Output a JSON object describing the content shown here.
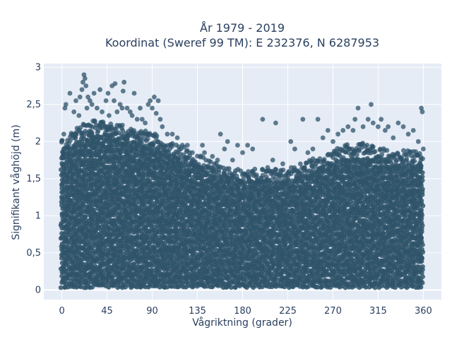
{
  "chart_data": {
    "type": "scatter",
    "title_line1": "År 1979 - 2019",
    "title_line2": "Koordinat (Sweref 99 TM): E 232376, N 6287953",
    "xlabel": "Vågriktning (grader)",
    "ylabel": "Signifikant våghöjd (m)",
    "xlim": [
      -18,
      378
    ],
    "ylim": [
      -0.13,
      3.05
    ],
    "xticks": [
      0,
      45,
      90,
      135,
      180,
      225,
      270,
      315,
      360
    ],
    "xtick_labels": [
      "0",
      "45",
      "90",
      "135",
      "180",
      "225",
      "270",
      "315",
      "360"
    ],
    "yticks": [
      0,
      0.5,
      1,
      1.5,
      2,
      2.5,
      3
    ],
    "ytick_labels": [
      "0",
      "0,5",
      "1",
      "1,5",
      "2",
      "2,5",
      "3"
    ],
    "grid": true,
    "legend": false,
    "colors": {
      "marker": "#2f5369",
      "plot_background": "#e5ecf6",
      "grid": "#ffffff",
      "text": "#2a3f5f"
    },
    "dense_band_upper_envelope": {
      "x": [
        0,
        10,
        20,
        30,
        45,
        60,
        75,
        90,
        100,
        110,
        120,
        135,
        150,
        165,
        180,
        200,
        225,
        250,
        270,
        285,
        300,
        315,
        330,
        345,
        360
      ],
      "y": [
        1.85,
        1.95,
        2.05,
        2.1,
        2.1,
        2.05,
        2.0,
        1.95,
        1.85,
        1.8,
        1.75,
        1.65,
        1.55,
        1.5,
        1.45,
        1.45,
        1.45,
        1.6,
        1.7,
        1.8,
        1.8,
        1.75,
        1.7,
        1.7,
        1.7
      ]
    },
    "outlier_points": [
      {
        "x": 2,
        "y": 2.1
      },
      {
        "x": 3,
        "y": 2.45
      },
      {
        "x": 4,
        "y": 2.5
      },
      {
        "x": 8,
        "y": 2.65
      },
      {
        "x": 12,
        "y": 2.4
      },
      {
        "x": 14,
        "y": 2.55
      },
      {
        "x": 17,
        "y": 2.35
      },
      {
        "x": 18,
        "y": 2.6
      },
      {
        "x": 20,
        "y": 2.7
      },
      {
        "x": 21,
        "y": 2.8
      },
      {
        "x": 22,
        "y": 2.9
      },
      {
        "x": 23,
        "y": 2.85
      },
      {
        "x": 24,
        "y": 2.75
      },
      {
        "x": 25,
        "y": 2.45
      },
      {
        "x": 26,
        "y": 2.6
      },
      {
        "x": 28,
        "y": 2.55
      },
      {
        "x": 30,
        "y": 2.5
      },
      {
        "x": 32,
        "y": 2.65
      },
      {
        "x": 35,
        "y": 2.45
      },
      {
        "x": 38,
        "y": 2.7
      },
      {
        "x": 40,
        "y": 2.4
      },
      {
        "x": 44,
        "y": 2.55
      },
      {
        "x": 46,
        "y": 2.65
      },
      {
        "x": 47,
        "y": 2.35
      },
      {
        "x": 50,
        "y": 2.75
      },
      {
        "x": 52,
        "y": 2.55
      },
      {
        "x": 53,
        "y": 2.78
      },
      {
        "x": 55,
        "y": 2.4
      },
      {
        "x": 58,
        "y": 2.5
      },
      {
        "x": 60,
        "y": 2.45
      },
      {
        "x": 61,
        "y": 2.68
      },
      {
        "x": 62,
        "y": 2.8
      },
      {
        "x": 65,
        "y": 2.45
      },
      {
        "x": 68,
        "y": 2.4
      },
      {
        "x": 70,
        "y": 2.35
      },
      {
        "x": 72,
        "y": 2.65
      },
      {
        "x": 75,
        "y": 2.3
      },
      {
        "x": 78,
        "y": 2.45
      },
      {
        "x": 80,
        "y": 2.3
      },
      {
        "x": 83,
        "y": 2.25
      },
      {
        "x": 86,
        "y": 2.5
      },
      {
        "x": 88,
        "y": 2.55
      },
      {
        "x": 90,
        "y": 2.45
      },
      {
        "x": 92,
        "y": 2.6
      },
      {
        "x": 94,
        "y": 2.38
      },
      {
        "x": 96,
        "y": 2.55
      },
      {
        "x": 98,
        "y": 2.3
      },
      {
        "x": 100,
        "y": 2.2
      },
      {
        "x": 105,
        "y": 2.1
      },
      {
        "x": 110,
        "y": 2.1
      },
      {
        "x": 115,
        "y": 2.05
      },
      {
        "x": 120,
        "y": 1.95
      },
      {
        "x": 125,
        "y": 1.95
      },
      {
        "x": 130,
        "y": 1.85
      },
      {
        "x": 140,
        "y": 1.95
      },
      {
        "x": 142,
        "y": 1.85
      },
      {
        "x": 150,
        "y": 1.8
      },
      {
        "x": 155,
        "y": 1.75
      },
      {
        "x": 158,
        "y": 2.1
      },
      {
        "x": 162,
        "y": 1.9
      },
      {
        "x": 165,
        "y": 2.0
      },
      {
        "x": 170,
        "y": 1.75
      },
      {
        "x": 175,
        "y": 1.95
      },
      {
        "x": 180,
        "y": 1.85
      },
      {
        "x": 185,
        "y": 1.95
      },
      {
        "x": 190,
        "y": 1.9
      },
      {
        "x": 200,
        "y": 2.3
      },
      {
        "x": 205,
        "y": 1.65
      },
      {
        "x": 210,
        "y": 1.75
      },
      {
        "x": 213,
        "y": 2.25
      },
      {
        "x": 220,
        "y": 1.7
      },
      {
        "x": 228,
        "y": 2.0
      },
      {
        "x": 232,
        "y": 1.9
      },
      {
        "x": 240,
        "y": 2.3
      },
      {
        "x": 245,
        "y": 1.85
      },
      {
        "x": 250,
        "y": 1.9
      },
      {
        "x": 255,
        "y": 2.3
      },
      {
        "x": 260,
        "y": 2.05
      },
      {
        "x": 265,
        "y": 2.15
      },
      {
        "x": 270,
        "y": 2.0
      },
      {
        "x": 275,
        "y": 2.1
      },
      {
        "x": 280,
        "y": 2.15
      },
      {
        "x": 285,
        "y": 2.2
      },
      {
        "x": 290,
        "y": 2.15
      },
      {
        "x": 292,
        "y": 2.3
      },
      {
        "x": 295,
        "y": 2.45
      },
      {
        "x": 300,
        "y": 2.2
      },
      {
        "x": 305,
        "y": 2.3
      },
      {
        "x": 308,
        "y": 2.5
      },
      {
        "x": 310,
        "y": 2.25
      },
      {
        "x": 315,
        "y": 2.2
      },
      {
        "x": 318,
        "y": 2.3
      },
      {
        "x": 322,
        "y": 2.15
      },
      {
        "x": 325,
        "y": 2.2
      },
      {
        "x": 330,
        "y": 2.05
      },
      {
        "x": 335,
        "y": 2.25
      },
      {
        "x": 340,
        "y": 2.2
      },
      {
        "x": 345,
        "y": 2.1
      },
      {
        "x": 350,
        "y": 2.15
      },
      {
        "x": 355,
        "y": 2.0
      },
      {
        "x": 358,
        "y": 2.45
      },
      {
        "x": 359,
        "y": 2.4
      },
      {
        "x": 360,
        "y": 1.9
      }
    ]
  }
}
